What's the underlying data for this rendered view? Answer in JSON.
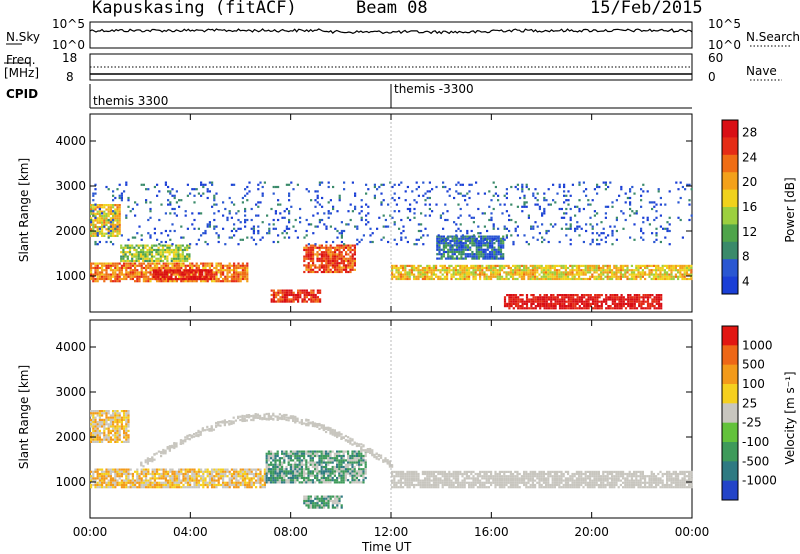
{
  "header": {
    "station": "Kapuskasing (fitACF)",
    "beam": "Beam 08",
    "date": "15/Feb/2015"
  },
  "noise_panel": {
    "left_label": "N.Sky",
    "right_label": "N.Search",
    "left_ticks": [
      "10^5",
      "10^0"
    ],
    "right_ticks": [
      "10^5",
      "10^0"
    ]
  },
  "freq_panel": {
    "left_label_1": "Freq.",
    "left_label_2": "[MHz]",
    "right_label": "Nave",
    "left_ticks": [
      "18",
      "8"
    ],
    "right_ticks": [
      "60",
      "0"
    ]
  },
  "cpid": {
    "label": "CPID",
    "segments": [
      {
        "name": "themis 3300",
        "start_hour": 0
      },
      {
        "name": "themis -3300",
        "start_hour": 12
      }
    ]
  },
  "chart_data": [
    {
      "type": "heatmap",
      "panel": "power",
      "ylabel": "Slant Range [km]",
      "colorbar_label": "Power [dB]",
      "ylim": [
        200,
        4600
      ],
      "yticks": [
        1000,
        2000,
        3000,
        4000
      ],
      "colorbar_ticks": [
        4,
        8,
        12,
        16,
        20,
        24,
        28
      ],
      "colorscale": [
        "#1b3fd6",
        "#2a57d2",
        "#3a8a6a",
        "#4fa44a",
        "#9ccf3f",
        "#f0d21c",
        "#f3a11b",
        "#ef6d15",
        "#e52c16",
        "#d90e14"
      ],
      "gate_range_km": [
        180,
        4600
      ],
      "bands": [
        {
          "t": [
            0.0,
            6.3
          ],
          "r": [
            900,
            1300
          ],
          "level": 22
        },
        {
          "t": [
            2.5,
            4.8
          ],
          "r": [
            950,
            1150
          ],
          "level": 28
        },
        {
          "t": [
            0.0,
            1.2
          ],
          "r": [
            1900,
            2600
          ],
          "level": 18
        },
        {
          "t": [
            1.2,
            4.0
          ],
          "r": [
            1350,
            1700
          ],
          "level": 14
        },
        {
          "t": [
            8.5,
            10.6
          ],
          "r": [
            1100,
            1700
          ],
          "level": 24
        },
        {
          "t": [
            7.2,
            9.2
          ],
          "r": [
            450,
            700
          ],
          "level": 26
        },
        {
          "t": [
            12.0,
            24.0
          ],
          "r": [
            950,
            1250
          ],
          "level": 18
        },
        {
          "t": [
            16.5,
            22.8
          ],
          "r": [
            300,
            600
          ],
          "level": 28
        },
        {
          "t": [
            13.8,
            16.5
          ],
          "r": [
            1400,
            1900
          ],
          "level": 8
        },
        {
          "t": [
            0.0,
            24.0
          ],
          "r": [
            1700,
            3100
          ],
          "level": 6,
          "sparse": true
        }
      ]
    },
    {
      "type": "heatmap",
      "panel": "velocity",
      "ylabel": "Slant Range [km]",
      "colorbar_label": "Velocity [m s⁻¹]",
      "ylim": [
        200,
        4600
      ],
      "yticks": [
        1000,
        2000,
        3000,
        4000
      ],
      "colorbar_ticks": [
        "1000",
        "500",
        "100",
        "25",
        "-25",
        "-100",
        "-500",
        "-1000"
      ],
      "colorscale": [
        "#2344c8",
        "#2f7a82",
        "#3e9a5a",
        "#63c23b",
        "#c8c6bf",
        "#f5d01f",
        "#f39a1a",
        "#ee6717",
        "#e21712"
      ],
      "bands": [
        {
          "t": [
            0.0,
            7.0
          ],
          "r": [
            900,
            1300
          ],
          "velocity": -200
        },
        {
          "t": [
            7.0,
            11.0
          ],
          "r": [
            1000,
            1700
          ],
          "velocity": 150
        },
        {
          "t": [
            12.0,
            24.0
          ],
          "r": [
            900,
            1250
          ],
          "velocity": 0
        },
        {
          "t": [
            2.0,
            12.0
          ],
          "r": [
            1400,
            2600
          ],
          "velocity": 0,
          "arc": true
        },
        {
          "t": [
            8.5,
            10.0
          ],
          "r": [
            450,
            700
          ],
          "velocity": 200
        },
        {
          "t": [
            0.0,
            1.5
          ],
          "r": [
            1900,
            2600
          ],
          "velocity": -300
        }
      ]
    }
  ],
  "x_axis": {
    "label": "Time UT",
    "ticks": [
      "00:00",
      "04:00",
      "08:00",
      "12:00",
      "16:00",
      "20:00",
      "00:00"
    ],
    "range_hours": [
      0,
      24
    ]
  }
}
